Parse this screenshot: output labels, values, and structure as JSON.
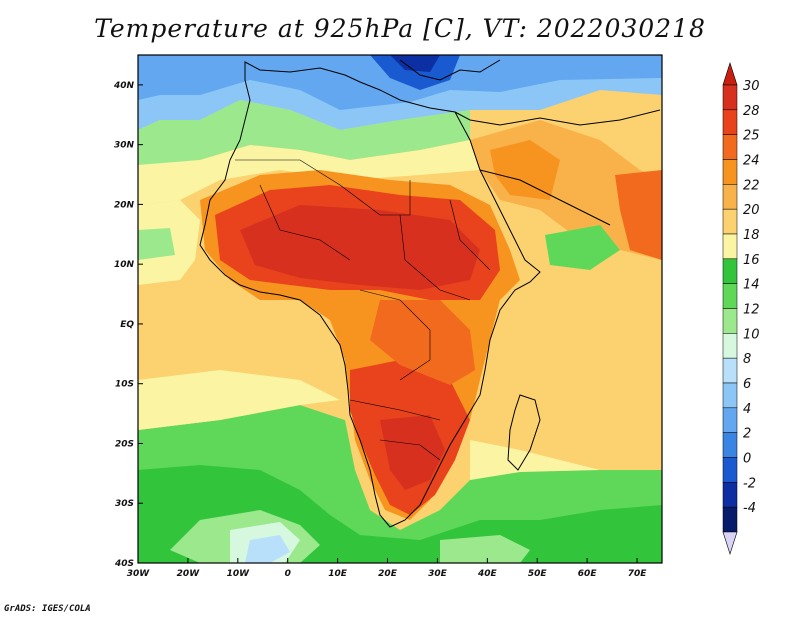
{
  "title": "Temperature at 925hPa [C], VT: 2022030218",
  "credit": "GrADS: IGES/COLA",
  "map": {
    "variable": "Temperature at 925hPa",
    "units": "C",
    "valid_time": "2022030218",
    "lon_range": [
      -30,
      75
    ],
    "lat_range": [
      -40,
      45
    ],
    "x_ticks": [
      "30W",
      "20W",
      "10W",
      "0",
      "10E",
      "20E",
      "30E",
      "40E",
      "50E",
      "60E",
      "70E"
    ],
    "y_ticks": [
      "40N",
      "30N",
      "20N",
      "10N",
      "EQ",
      "10S",
      "20S",
      "30S",
      "40S"
    ]
  },
  "colorbar": {
    "labels": [
      "30",
      "28",
      "25",
      "24",
      "22",
      "20",
      "18",
      "16",
      "14",
      "12",
      "10",
      "8",
      "6",
      "4",
      "2",
      "0",
      "-2",
      "-4"
    ],
    "colors": [
      "#d7301f",
      "#e8431c",
      "#f26a1d",
      "#f7931f",
      "#f9b24a",
      "#fbd26f",
      "#fbf4a3",
      "#32c53c",
      "#5fd85a",
      "#9ce98d",
      "#d6f8df",
      "#b8e0fb",
      "#8cc6f6",
      "#62a7ef",
      "#3a85e3",
      "#1a5ad0",
      "#0c2fa3",
      "#071b6b"
    ],
    "top_arrow_color": "#c81f0f",
    "bottom_arrow_color": "#d9d4f6"
  }
}
